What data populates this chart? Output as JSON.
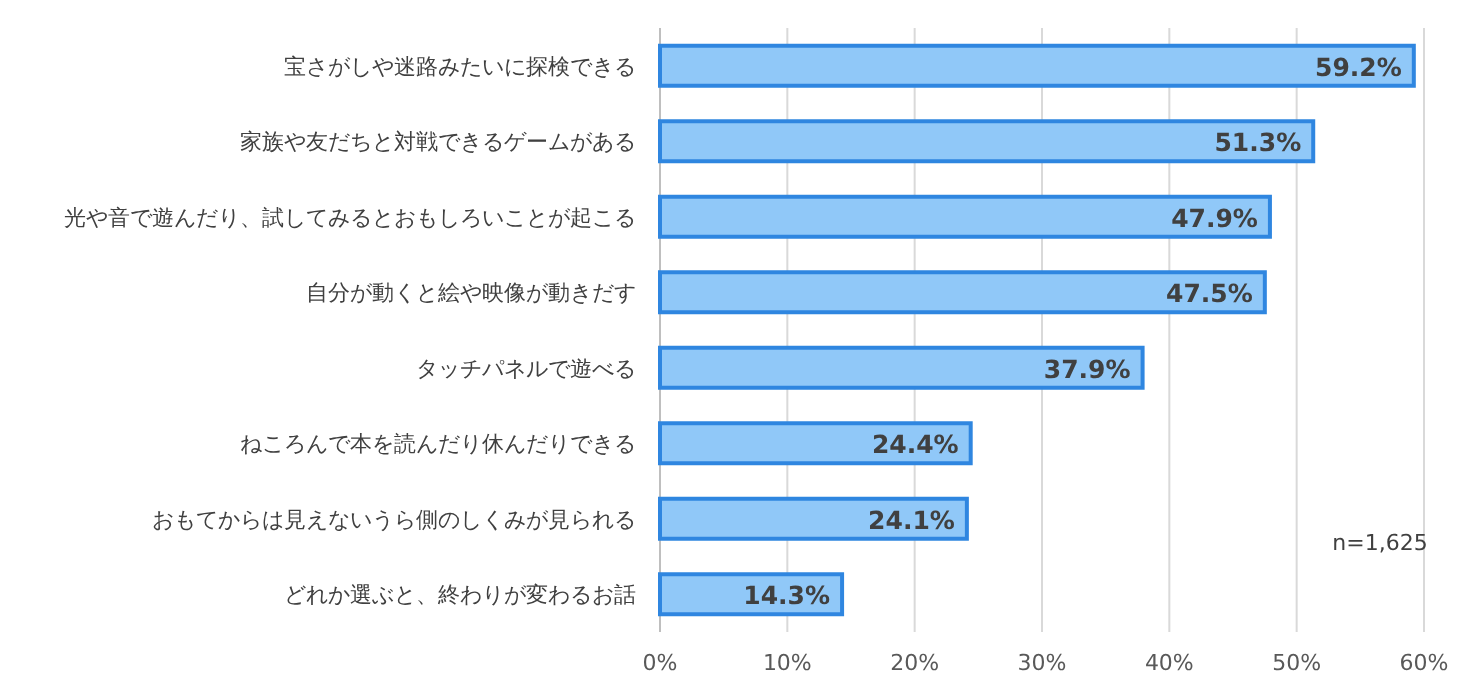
{
  "chart_data": {
    "type": "bar",
    "orientation": "horizontal",
    "categories": [
      "宝さがしや迷路みたいに探検できる",
      "家族や友だちと対戦できるゲームがある",
      "光や音で遊んだり、試してみるとおもしろいことが起こる",
      "自分が動くと絵や映像が動きだす",
      "タッチパネルで遊べる",
      "ねころんで本を読んだり休んだりできる",
      "おもてからは見えないうら側のしくみが見られる",
      "どれか選ぶと、終わりが変わるお話"
    ],
    "values": [
      59.2,
      51.3,
      47.9,
      47.5,
      37.9,
      24.4,
      24.1,
      14.3
    ],
    "value_labels": [
      "59.2%",
      "51.3%",
      "47.9%",
      "47.5%",
      "37.9%",
      "24.4%",
      "24.1%",
      "14.3%"
    ],
    "color": "#90c8f8",
    "xlim": [
      0,
      60
    ],
    "xticks": [
      {
        "value": 0,
        "label": "0%"
      },
      {
        "value": 10,
        "label": "10%"
      },
      {
        "value": 20,
        "label": "20%"
      },
      {
        "value": 30,
        "label": "30%"
      },
      {
        "value": 40,
        "label": "40%"
      },
      {
        "value": 50,
        "label": "50%"
      },
      {
        "value": 60,
        "label": "60%"
      }
    ],
    "grid": "x",
    "annotations": [
      "n=1,625"
    ]
  }
}
